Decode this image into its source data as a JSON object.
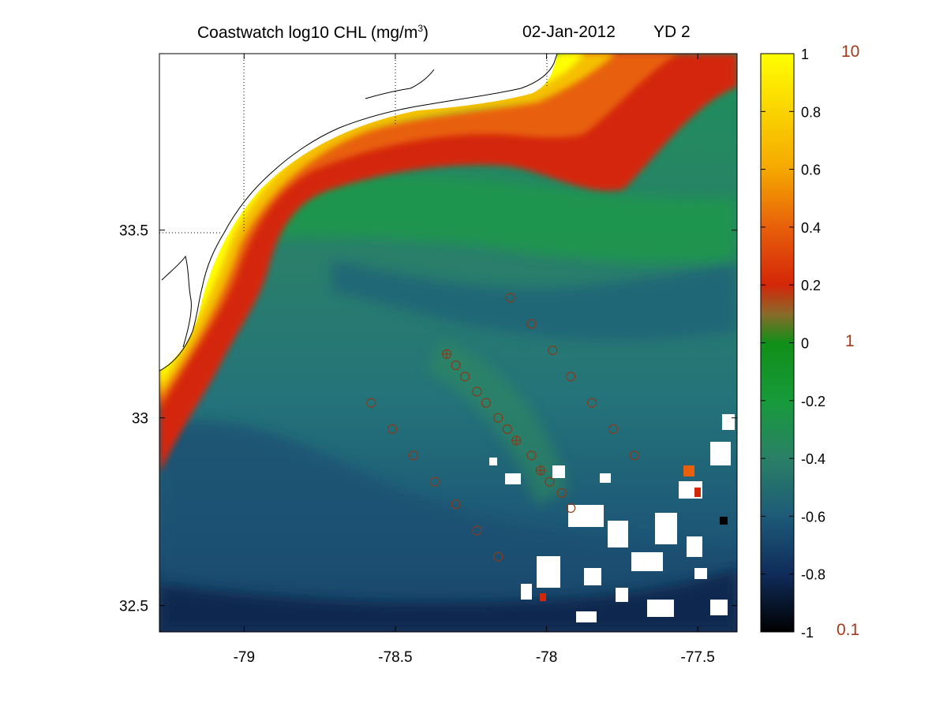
{
  "title": {
    "prefix": "Coastwatch  log10  CHL (mg/m",
    "exponent": "3",
    "suffix": ")",
    "date": "02-Jan-2012",
    "yearday": "YD 2"
  },
  "chart_data": {
    "type": "heatmap",
    "variable": "log10 CHL",
    "x_ticks": [
      "-79",
      "-78.5",
      "-78",
      "-77.5"
    ],
    "x_tick_values": [
      -79,
      -78.5,
      -78,
      -77.5
    ],
    "y_ticks": [
      "33.5",
      "33",
      "32.5"
    ],
    "y_tick_values": [
      33.5,
      33,
      32.5
    ],
    "xlim": [
      -79.28,
      -77.37
    ],
    "ylim": [
      32.43,
      33.97
    ],
    "grid": "dotted at -79, -78.5, -78 and 33.5",
    "colorbar": {
      "range": [
        -1,
        1
      ],
      "tick_labels": [
        "1",
        "0.8",
        "0.6",
        "0.4",
        "0.2",
        "0",
        "-0.2",
        "-0.4",
        "-0.6",
        "-0.8",
        "-1"
      ],
      "tick_values": [
        1,
        0.8,
        0.6,
        0.4,
        0.2,
        0,
        -0.2,
        -0.4,
        -0.6,
        -0.8,
        -1
      ],
      "right_labels": [
        "10",
        "1",
        "0.1"
      ],
      "right_label_values": [
        1,
        0,
        -1
      ],
      "colors": [
        "#000000",
        "#0f2c5a",
        "#1d5a78",
        "#2a8066",
        "#179a3a",
        "#118f18",
        "#8a6a2a",
        "#d42608",
        "#e8600a",
        "#f5a800",
        "#ffff00"
      ]
    },
    "stations": [
      {
        "lon": -78.33,
        "lat": 33.17,
        "cross": true
      },
      {
        "lon": -78.3,
        "lat": 33.14
      },
      {
        "lon": -78.27,
        "lat": 33.11
      },
      {
        "lon": -78.23,
        "lat": 33.07
      },
      {
        "lon": -78.2,
        "lat": 33.04
      },
      {
        "lon": -78.16,
        "lat": 33.0
      },
      {
        "lon": -78.13,
        "lat": 32.97
      },
      {
        "lon": -78.1,
        "lat": 32.94,
        "cross": true
      },
      {
        "lon": -78.05,
        "lat": 32.9
      },
      {
        "lon": -78.02,
        "lat": 32.86,
        "cross": true
      },
      {
        "lon": -77.99,
        "lat": 32.83
      },
      {
        "lon": -77.95,
        "lat": 32.8
      },
      {
        "lon": -77.92,
        "lat": 32.76
      },
      {
        "lon": -78.12,
        "lat": 33.32
      },
      {
        "lon": -78.05,
        "lat": 33.25
      },
      {
        "lon": -77.98,
        "lat": 33.18
      },
      {
        "lon": -77.92,
        "lat": 33.11
      },
      {
        "lon": -77.85,
        "lat": 33.04
      },
      {
        "lon": -77.78,
        "lat": 32.97
      },
      {
        "lon": -77.71,
        "lat": 32.9
      },
      {
        "lon": -78.58,
        "lat": 33.04
      },
      {
        "lon": -78.51,
        "lat": 32.97
      },
      {
        "lon": -78.44,
        "lat": 32.9
      },
      {
        "lon": -78.37,
        "lat": 32.83
      },
      {
        "lon": -78.3,
        "lat": 32.77
      },
      {
        "lon": -78.23,
        "lat": 32.7
      },
      {
        "lon": -78.16,
        "lat": 32.63
      }
    ]
  }
}
